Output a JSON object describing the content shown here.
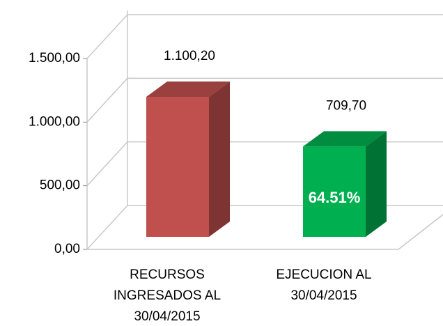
{
  "chart_data": {
    "type": "bar3d",
    "categories": [
      [
        "RECURSOS",
        "INGRESADOS AL",
        "30/04/2015"
      ],
      [
        "EJECUCION AL",
        "30/04/2015"
      ]
    ],
    "values": [
      1100.2,
      709.7
    ],
    "value_labels": [
      "1.100,20",
      "709,70"
    ],
    "colors": [
      "#c0504d",
      "#00b050"
    ],
    "ylim": [
      0,
      1500
    ],
    "yticks": [
      {
        "value": 0,
        "label": "0,00"
      },
      {
        "value": 500,
        "label": "500,00"
      },
      {
        "value": 1000,
        "label": "1.000,00"
      },
      {
        "value": 1500,
        "label": "1.500,00"
      }
    ],
    "annotations": [
      {
        "text": "64.51%",
        "series_index": 1
      }
    ],
    "grid": true
  }
}
